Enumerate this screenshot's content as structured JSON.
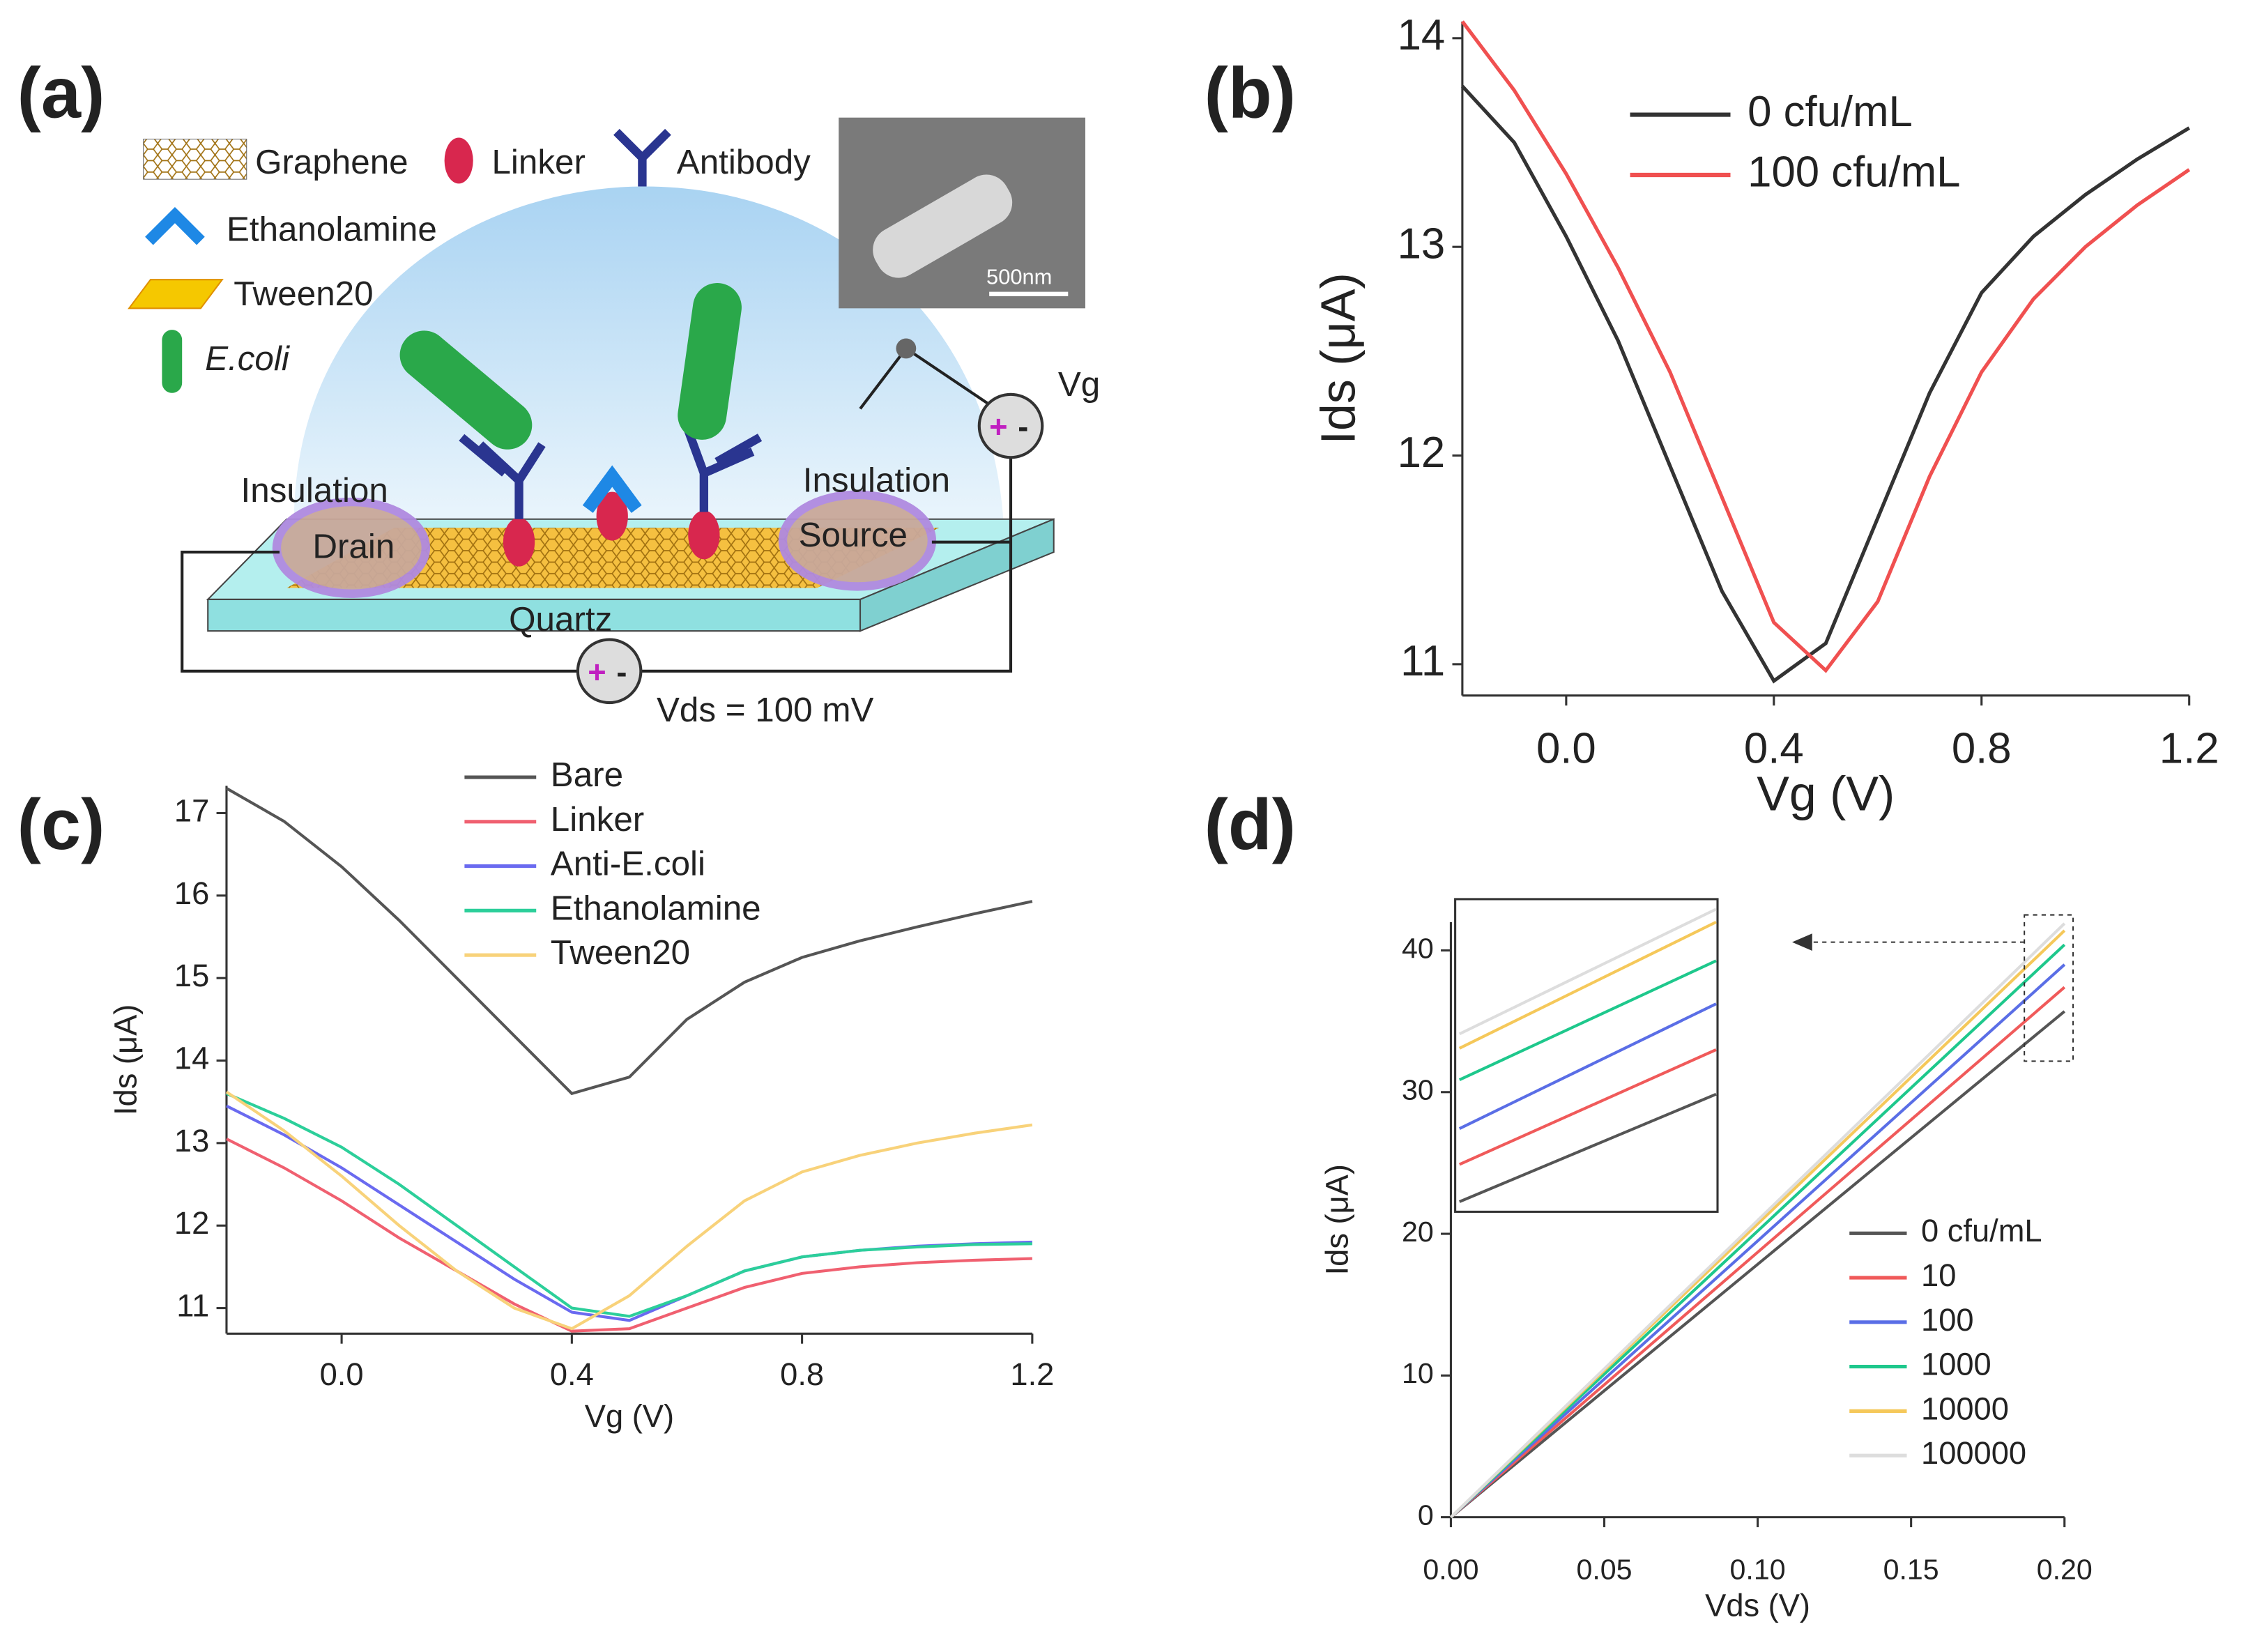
{
  "panel_labels": [
    "(a)",
    "(b)",
    "(c)",
    "(d)"
  ],
  "diagram": {
    "legend": [
      "Graphene",
      "Linker",
      "Antibody",
      "Ethanolamine",
      "Tween20",
      "E.coli"
    ],
    "scale_bar": "500nm",
    "gate": "Vg",
    "insulation": [
      "Insulation",
      "Insulation"
    ],
    "drain": "Drain",
    "source": "Source",
    "substrate": "Quartz",
    "bias": "Vds = 100 mV",
    "polarity": [
      "+",
      "-"
    ]
  },
  "chart_data": [
    {
      "type": "line",
      "xlabel": "Vg (V)",
      "ylabel": "Ids (μA)",
      "legend": "upper right",
      "x": [
        -0.2,
        -0.1,
        0,
        0.1,
        0.2,
        0.3,
        0.4,
        0.5,
        0.6,
        0.7,
        0.8,
        0.9,
        1.0,
        1.1,
        1.2
      ],
      "series": [
        {
          "name": "0 cfu/mL",
          "color": "#333333",
          "values": [
            13.77,
            13.5,
            13.05,
            12.55,
            11.95,
            11.35,
            10.92,
            11.1,
            11.7,
            12.3,
            12.78,
            13.05,
            13.25,
            13.42,
            13.57
          ]
        },
        {
          "name": "100 cfu/mL",
          "color": "#f05050",
          "values": [
            14.08,
            13.75,
            13.35,
            12.9,
            12.4,
            11.8,
            11.2,
            10.97,
            11.3,
            11.9,
            12.4,
            12.75,
            13.0,
            13.2,
            13.37
          ]
        }
      ],
      "xlim": [
        -0.2,
        1.2
      ],
      "ylim": [
        10.85,
        14.08
      ],
      "xticks": [
        {
          "value": 0,
          "label": "0.0"
        },
        0.4,
        0.8,
        1.2
      ],
      "yticks": [
        11,
        12,
        13,
        14
      ]
    },
    {
      "type": "line",
      "xlabel": "Vg (V)",
      "ylabel": "Ids (μA)",
      "legend": "upper center",
      "x": [
        -0.2,
        -0.1,
        0,
        0.1,
        0.2,
        0.3,
        0.4,
        0.5,
        0.6,
        0.7,
        0.8,
        0.9,
        1.0,
        1.1,
        1.2
      ],
      "series": [
        {
          "name": "Bare",
          "color": "#555555",
          "values": [
            17.3,
            16.9,
            16.35,
            15.7,
            15.0,
            14.3,
            13.6,
            13.8,
            14.5,
            14.95,
            15.25,
            15.45,
            15.62,
            15.78,
            15.93
          ]
        },
        {
          "name": "Linker",
          "color": "#f06070",
          "values": [
            13.05,
            12.7,
            12.3,
            11.85,
            11.45,
            11.05,
            10.72,
            10.75,
            11.0,
            11.25,
            11.42,
            11.5,
            11.55,
            11.58,
            11.6
          ]
        },
        {
          "name": "Anti-E.coli",
          "color": "#6a6af0",
          "values": [
            13.45,
            13.1,
            12.7,
            12.25,
            11.8,
            11.35,
            10.95,
            10.85,
            11.15,
            11.45,
            11.62,
            11.7,
            11.75,
            11.78,
            11.8
          ]
        },
        {
          "name": "Ethanolamine",
          "color": "#2ccf9a",
          "values": [
            13.6,
            13.3,
            12.95,
            12.5,
            12.0,
            11.5,
            11.0,
            10.9,
            11.15,
            11.45,
            11.62,
            11.7,
            11.74,
            11.77,
            11.78
          ]
        },
        {
          "name": "Tween20",
          "color": "#f8d27a",
          "values": [
            13.62,
            13.15,
            12.6,
            12.0,
            11.45,
            11.0,
            10.75,
            11.15,
            11.75,
            12.3,
            12.65,
            12.85,
            13.0,
            13.12,
            13.22
          ]
        }
      ],
      "xlim": [
        -0.2,
        1.2
      ],
      "ylim": [
        10.69,
        17.33
      ],
      "xticks": [
        {
          "value": 0,
          "label": "0.0"
        },
        0.4,
        0.8,
        1.2
      ],
      "yticks": [
        11,
        12,
        13,
        14,
        15,
        16,
        17
      ]
    },
    {
      "type": "line",
      "xlabel": "Vds (V)",
      "ylabel": "Ids (μA)",
      "legend": "lower right",
      "x": [
        0,
        0.2
      ],
      "series": [
        {
          "name": "0 cfu/mL",
          "color": "#555555",
          "values": [
            0,
            35.7
          ]
        },
        {
          "name": "10",
          "color": "#f05a5a",
          "values": [
            0,
            37.4
          ]
        },
        {
          "name": "100",
          "color": "#5a6ee6",
          "values": [
            0,
            39.0
          ]
        },
        {
          "name": "1000",
          "color": "#1ec88c",
          "values": [
            0,
            40.4
          ]
        },
        {
          "name": "10000",
          "color": "#f5c85a",
          "values": [
            0,
            41.4
          ]
        },
        {
          "name": "100000",
          "color": "#dddddd",
          "values": [
            0,
            41.9
          ]
        }
      ],
      "xlim": [
        0,
        0.2
      ],
      "ylim": [
        0,
        42
      ],
      "xticks": [
        {
          "value": 0,
          "label": "0.00"
        },
        {
          "value": 0.05,
          "label": "0.05"
        },
        {
          "value": 0.1,
          "label": "0.10"
        },
        {
          "value": 0.15,
          "label": "0.15"
        },
        {
          "value": 0.2,
          "label": "0.20"
        }
      ],
      "yticks": [
        0,
        10,
        20,
        30,
        40
      ]
    }
  ]
}
